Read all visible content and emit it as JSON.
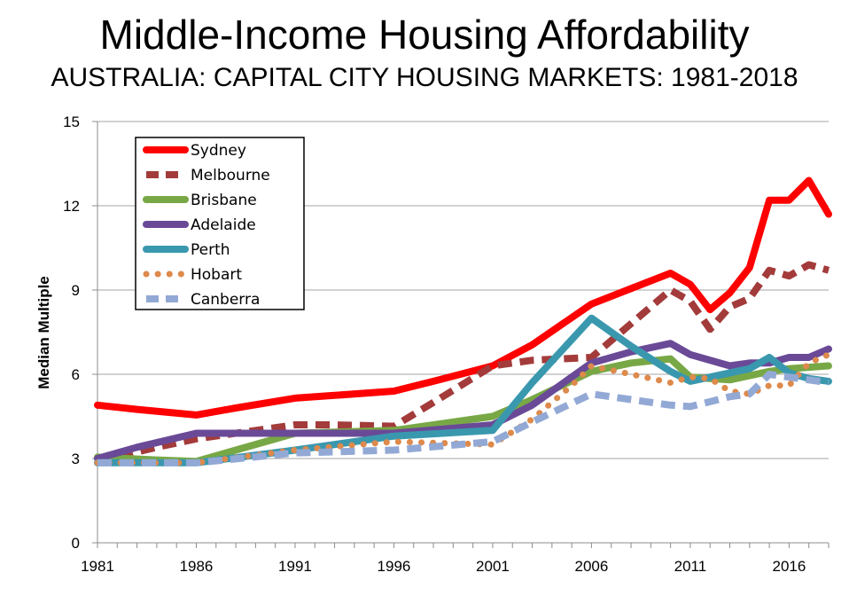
{
  "title": "Middle-Income Housing Affordability",
  "subtitle": "AUSTRALIA: CAPITAL CITY HOUSING MARKETS: 1981-2018",
  "chart_data": {
    "type": "line",
    "title": "Middle-Income Housing Affordability",
    "subtitle": "AUSTRALIA: CAPITAL CITY HOUSING MARKETS: 1981-2018",
    "xlabel": "",
    "ylabel": "Median Multiple",
    "xlim": [
      1981,
      2018
    ],
    "ylim": [
      0,
      15
    ],
    "x_ticks": [
      1981,
      1986,
      1991,
      1996,
      2001,
      2006,
      2011,
      2016
    ],
    "y_ticks": [
      0,
      3,
      6,
      9,
      12,
      15
    ],
    "grid": "horizontal",
    "legend_position": "top-left",
    "series": [
      {
        "name": "Sydney",
        "color": "#ff0000",
        "style": "solid",
        "points": [
          [
            1981,
            4.9
          ],
          [
            1983,
            4.75
          ],
          [
            1986,
            4.55
          ],
          [
            1988,
            4.8
          ],
          [
            1991,
            5.15
          ],
          [
            1993,
            5.25
          ],
          [
            1996,
            5.4
          ],
          [
            1998,
            5.75
          ],
          [
            2001,
            6.3
          ],
          [
            2003,
            7.05
          ],
          [
            2006,
            8.5
          ],
          [
            2008,
            9.05
          ],
          [
            2010,
            9.6
          ],
          [
            2011,
            9.2
          ],
          [
            2012,
            8.3
          ],
          [
            2013,
            8.9
          ],
          [
            2014,
            9.8
          ],
          [
            2015,
            12.2
          ],
          [
            2016,
            12.2
          ],
          [
            2017,
            12.9
          ],
          [
            2018,
            11.7
          ]
        ]
      },
      {
        "name": "Melbourne",
        "color": "#a33b3b",
        "style": "dashed",
        "points": [
          [
            1981,
            2.9
          ],
          [
            1984,
            3.4
          ],
          [
            1986,
            3.7
          ],
          [
            1991,
            4.2
          ],
          [
            1993,
            4.2
          ],
          [
            1996,
            4.15
          ],
          [
            1998,
            5.0
          ],
          [
            2001,
            6.3
          ],
          [
            2003,
            6.5
          ],
          [
            2006,
            6.6
          ],
          [
            2008,
            7.8
          ],
          [
            2010,
            9.0
          ],
          [
            2011,
            8.6
          ],
          [
            2012,
            7.6
          ],
          [
            2013,
            8.4
          ],
          [
            2014,
            8.7
          ],
          [
            2015,
            9.7
          ],
          [
            2016,
            9.5
          ],
          [
            2017,
            9.9
          ],
          [
            2018,
            9.7
          ]
        ]
      },
      {
        "name": "Brisbane",
        "color": "#78a846",
        "style": "solid",
        "points": [
          [
            1981,
            3.05
          ],
          [
            1984,
            2.95
          ],
          [
            1986,
            2.9
          ],
          [
            1988,
            3.3
          ],
          [
            1991,
            3.9
          ],
          [
            1996,
            4.0
          ],
          [
            2001,
            4.5
          ],
          [
            2003,
            5.1
          ],
          [
            2006,
            6.1
          ],
          [
            2008,
            6.4
          ],
          [
            2010,
            6.55
          ],
          [
            2011,
            5.9
          ],
          [
            2013,
            5.8
          ],
          [
            2015,
            6.1
          ],
          [
            2016,
            6.2
          ],
          [
            2018,
            6.3
          ]
        ]
      },
      {
        "name": "Adelaide",
        "color": "#6a4a97",
        "style": "solid",
        "points": [
          [
            1981,
            3.0
          ],
          [
            1983,
            3.4
          ],
          [
            1986,
            3.9
          ],
          [
            1988,
            3.9
          ],
          [
            1991,
            3.9
          ],
          [
            1996,
            3.9
          ],
          [
            2001,
            4.2
          ],
          [
            2003,
            4.9
          ],
          [
            2006,
            6.4
          ],
          [
            2008,
            6.8
          ],
          [
            2010,
            7.1
          ],
          [
            2011,
            6.7
          ],
          [
            2013,
            6.3
          ],
          [
            2014,
            6.4
          ],
          [
            2015,
            6.4
          ],
          [
            2016,
            6.6
          ],
          [
            2017,
            6.6
          ],
          [
            2018,
            6.9
          ]
        ]
      },
      {
        "name": "Perth",
        "color": "#3a98ae",
        "style": "solid",
        "points": [
          [
            1981,
            2.85
          ],
          [
            1986,
            2.85
          ],
          [
            1991,
            3.3
          ],
          [
            1996,
            3.8
          ],
          [
            2001,
            4.0
          ],
          [
            2003,
            5.7
          ],
          [
            2006,
            8.0
          ],
          [
            2008,
            7.0
          ],
          [
            2010,
            6.1
          ],
          [
            2011,
            5.75
          ],
          [
            2012,
            5.9
          ],
          [
            2014,
            6.2
          ],
          [
            2015,
            6.6
          ],
          [
            2016,
            6.05
          ],
          [
            2017,
            5.85
          ],
          [
            2018,
            5.75
          ]
        ]
      },
      {
        "name": "Hobart",
        "color": "#dd8a4c",
        "style": "dotted",
        "points": [
          [
            1981,
            2.85
          ],
          [
            1986,
            2.85
          ],
          [
            1991,
            3.3
          ],
          [
            1996,
            3.6
          ],
          [
            2001,
            3.5
          ],
          [
            2003,
            4.4
          ],
          [
            2005,
            5.6
          ],
          [
            2006,
            6.3
          ],
          [
            2008,
            6.0
          ],
          [
            2010,
            5.7
          ],
          [
            2011,
            5.9
          ],
          [
            2012,
            5.85
          ],
          [
            2013,
            5.4
          ],
          [
            2014,
            5.3
          ],
          [
            2015,
            5.6
          ],
          [
            2016,
            5.6
          ],
          [
            2017,
            6.4
          ],
          [
            2018,
            6.7
          ]
        ]
      },
      {
        "name": "Canberra",
        "color": "#93a9d5",
        "style": "dashed",
        "points": [
          [
            1981,
            2.85
          ],
          [
            1986,
            2.85
          ],
          [
            1991,
            3.2
          ],
          [
            1996,
            3.3
          ],
          [
            2001,
            3.6
          ],
          [
            2003,
            4.3
          ],
          [
            2006,
            5.3
          ],
          [
            2008,
            5.1
          ],
          [
            2010,
            4.9
          ],
          [
            2011,
            4.85
          ],
          [
            2013,
            5.2
          ],
          [
            2014,
            5.3
          ],
          [
            2015,
            6.0
          ],
          [
            2016,
            5.9
          ],
          [
            2017,
            5.8
          ],
          [
            2018,
            5.7
          ]
        ]
      }
    ]
  }
}
